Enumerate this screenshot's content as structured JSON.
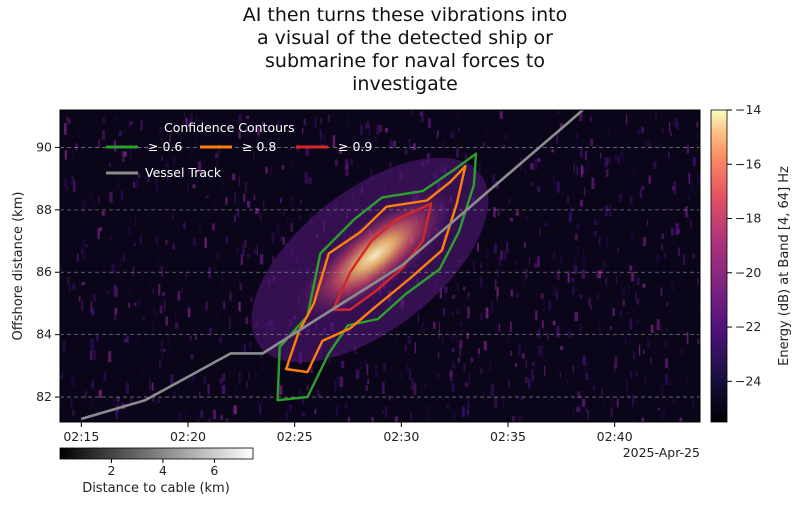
{
  "caption_lines": [
    "AI then turns these vibrations into",
    "a visual of the detected ship or",
    "submarine for naval forces to",
    "investigate"
  ],
  "chart_data": {
    "type": "heatmap",
    "title": "",
    "xlabel": "",
    "ylabel": "Offshore distance (km)",
    "x_ticks": [
      "02:15",
      "02:20",
      "02:25",
      "02:30",
      "02:35",
      "02:40"
    ],
    "x_offset_label": "2025-Apr-25",
    "xlim": [
      "02:14",
      "02:44"
    ],
    "y_ticks": [
      82,
      84,
      86,
      88,
      90
    ],
    "ylim": [
      81.2,
      91.2
    ],
    "grid": "horizontal dashed",
    "colorbar": {
      "label": "Energy (dB) at Band [4, 64] Hz",
      "ticks": [
        -14,
        -16,
        -18,
        -20,
        -22,
        -24
      ],
      "range": [
        -25.5,
        -14
      ],
      "colormap": "magma"
    },
    "track_colorbar": {
      "label": "Distance to cable (km)",
      "ticks": [
        2,
        4,
        6
      ],
      "range": [
        0,
        7.5
      ],
      "colormap": "greys"
    },
    "legend": {
      "title": "Confidence Contours",
      "placement": "top-left",
      "entries": [
        {
          "label": "≥ 0.6",
          "color": "#2ca02c"
        },
        {
          "label": "≥ 0.8",
          "color": "#ff7f0e"
        },
        {
          "label": "≥ 0.9",
          "color": "#d62728"
        },
        {
          "label": "Vessel Track",
          "color": "#8c8c8c"
        }
      ]
    },
    "vessel_track": {
      "name": "Vessel Track",
      "points": [
        {
          "t": "02:15",
          "km": 81.3
        },
        {
          "t": "02:18",
          "km": 81.9
        },
        {
          "t": "02:22",
          "km": 83.4
        },
        {
          "t": "02:23.5",
          "km": 83.4
        },
        {
          "t": "02:30",
          "km": 86.2
        },
        {
          "t": "02:38",
          "km": 90.9
        },
        {
          "t": "02:38.5",
          "km": 91.2
        }
      ]
    },
    "contours": [
      {
        "level": "≥ 0.6",
        "color": "#2ca02c",
        "points": [
          [
            "02:24.2",
            81.9
          ],
          [
            "02:24.3",
            83.6
          ],
          [
            "02:25.6",
            84.6
          ],
          [
            "02:26.2",
            86.6
          ],
          [
            "02:27.8",
            87.7
          ],
          [
            "02:29.1",
            88.4
          ],
          [
            "02:31.0",
            88.6
          ],
          [
            "02:32.5",
            89.3
          ],
          [
            "02:33.5",
            89.8
          ],
          [
            "02:33.4",
            88.8
          ],
          [
            "02:32.7",
            87.3
          ],
          [
            "02:31.8",
            86.1
          ],
          [
            "02:30.2",
            85.3
          ],
          [
            "02:28.9",
            84.5
          ],
          [
            "02:27.5",
            84.3
          ],
          [
            "02:26.6",
            83.4
          ],
          [
            "02:25.6",
            82.0
          ],
          [
            "02:24.2",
            81.9
          ]
        ]
      },
      {
        "level": "≥ 0.8",
        "color": "#ff7f0e",
        "points": [
          [
            "02:24.6",
            82.9
          ],
          [
            "02:25.2",
            84.1
          ],
          [
            "02:25.9",
            85.0
          ],
          [
            "02:26.6",
            86.6
          ],
          [
            "02:28.1",
            87.3
          ],
          [
            "02:29.3",
            88.1
          ],
          [
            "02:31.2",
            88.3
          ],
          [
            "02:32.3",
            88.9
          ],
          [
            "02:33.0",
            89.4
          ],
          [
            "02:32.6",
            88.2
          ],
          [
            "02:31.9",
            86.7
          ],
          [
            "02:30.4",
            85.8
          ],
          [
            "02:28.8",
            84.9
          ],
          [
            "02:27.6",
            84.2
          ],
          [
            "02:26.3",
            83.8
          ],
          [
            "02:25.6",
            82.8
          ],
          [
            "02:24.6",
            82.9
          ]
        ]
      },
      {
        "level": "≥ 0.9",
        "color": "#d62728",
        "points": [
          [
            "02:26.8",
            84.8
          ],
          [
            "02:27.6",
            86.0
          ],
          [
            "02:28.6",
            87.0
          ],
          [
            "02:29.8",
            87.7
          ],
          [
            "02:31.4",
            88.2
          ],
          [
            "02:31.0",
            87.0
          ],
          [
            "02:30.0",
            86.1
          ],
          [
            "02:28.8",
            85.4
          ],
          [
            "02:27.6",
            84.8
          ],
          [
            "02:26.8",
            84.8
          ]
        ]
      }
    ]
  }
}
